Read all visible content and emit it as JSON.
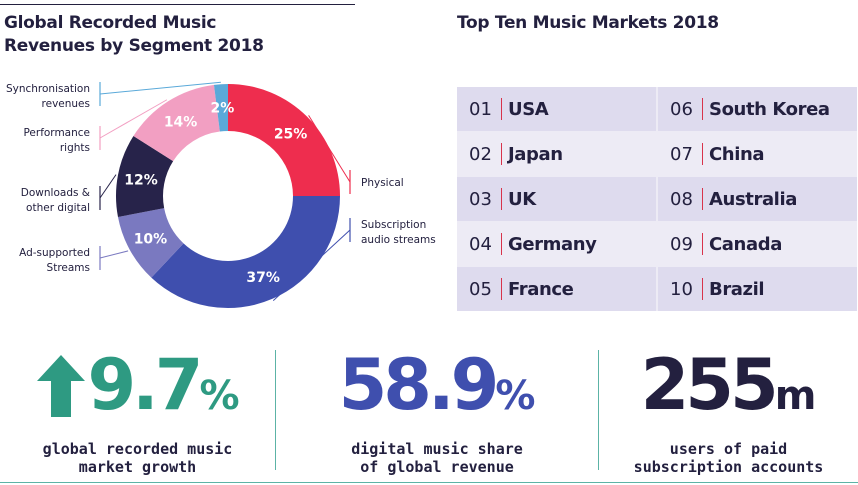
{
  "chart_data": {
    "type": "pie",
    "title": [
      "Global Recorded Music",
      "Revenues by Segment 2018"
    ],
    "slices": [
      {
        "name": "Physical",
        "value": 25,
        "label": "25%",
        "color": "#ee2d4e",
        "legend": [
          "Physical"
        ]
      },
      {
        "name": "Subscription audio streams",
        "value": 37,
        "label": "37%",
        "color": "#3f4fae",
        "legend": [
          "Subscription",
          "audio streams"
        ]
      },
      {
        "name": "Ad-supported Streams",
        "value": 10,
        "label": "10%",
        "color": "#7a79c0",
        "legend": [
          "Ad-supported",
          "Streams"
        ]
      },
      {
        "name": "Downloads & other digital",
        "value": 12,
        "label": "12%",
        "color": "#27234a",
        "legend": [
          "Downloads &",
          "other digital"
        ]
      },
      {
        "name": "Performance rights",
        "value": 14,
        "label": "14%",
        "color": "#f29fc2",
        "legend": [
          "Performance",
          "rights"
        ]
      },
      {
        "name": "Synchronisation revenues",
        "value": 2,
        "label": "2%",
        "color": "#5aa9d9",
        "legend": [
          "Synchronisation",
          "revenues"
        ]
      }
    ]
  },
  "markets": {
    "title": "Top Ten Music Markets 2018",
    "items": [
      {
        "rank": "01",
        "country": "USA"
      },
      {
        "rank": "02",
        "country": "Japan"
      },
      {
        "rank": "03",
        "country": "UK"
      },
      {
        "rank": "04",
        "country": "Germany"
      },
      {
        "rank": "05",
        "country": "France"
      },
      {
        "rank": "06",
        "country": "South Korea"
      },
      {
        "rank": "07",
        "country": "China"
      },
      {
        "rank": "08",
        "country": "Australia"
      },
      {
        "rank": "09",
        "country": "Canada"
      },
      {
        "rank": "10",
        "country": "Brazil"
      }
    ]
  },
  "stats": [
    {
      "value": "9.7",
      "unit": "%",
      "lines": [
        "global recorded music",
        "market growth"
      ],
      "color": "#2e9a82",
      "icon": "up-arrow-icon"
    },
    {
      "value": "58.9",
      "unit": "%",
      "lines": [
        "digital music share",
        "of global revenue"
      ],
      "color": "#3f4fae"
    },
    {
      "value": "255",
      "unit": "m",
      "lines": [
        "users of paid",
        "subscription accounts"
      ],
      "color": "#23203f"
    }
  ]
}
